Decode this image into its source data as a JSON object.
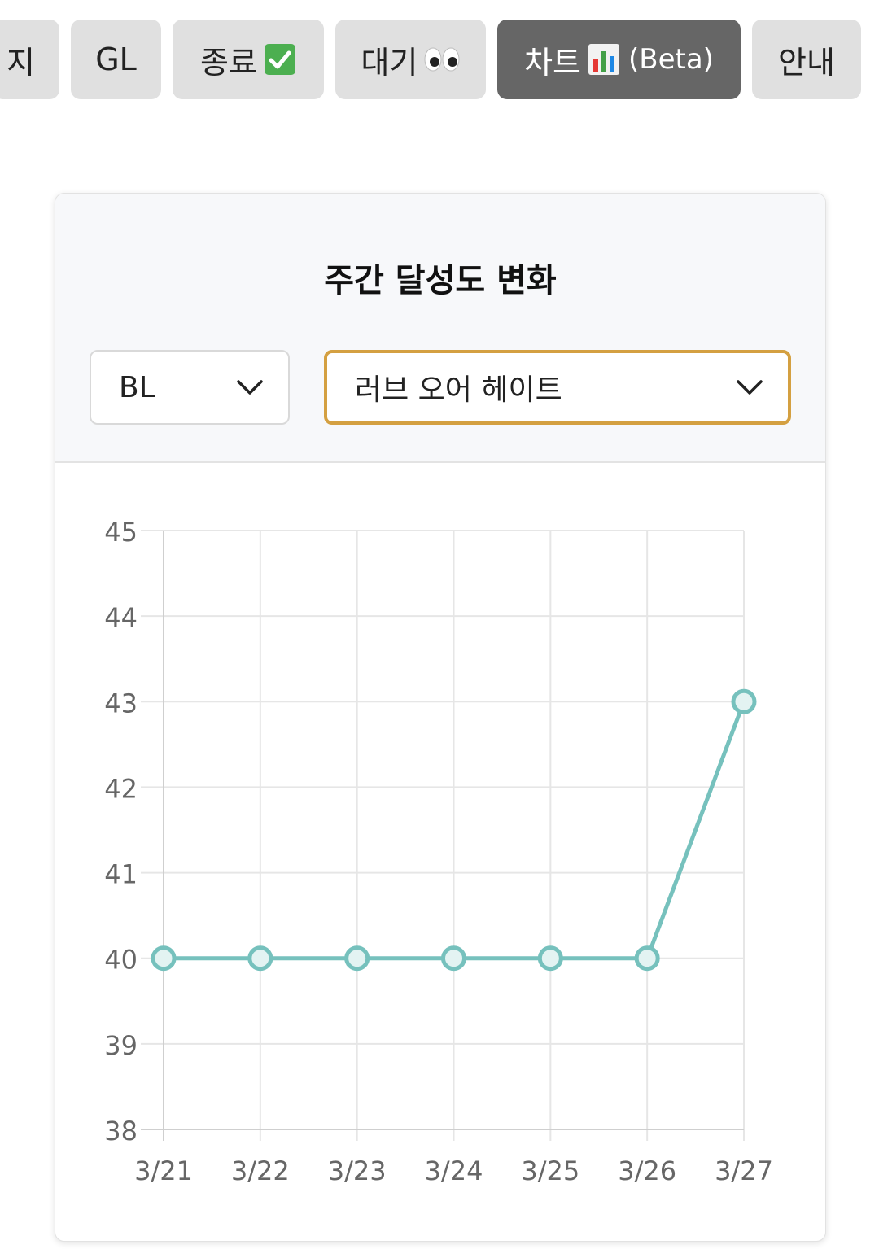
{
  "tabs": [
    {
      "label": "지",
      "emoji": ""
    },
    {
      "label": "GL",
      "emoji": ""
    },
    {
      "label": "종료",
      "emoji": "✅"
    },
    {
      "label": "대기",
      "emoji": "👀"
    },
    {
      "label": "차트",
      "emoji": "📊",
      "suffix": "(Beta)",
      "active": true
    },
    {
      "label": "안내",
      "emoji": ""
    }
  ],
  "card": {
    "title": "주간 달성도 변화",
    "category_select": {
      "value": "BL"
    },
    "title_select": {
      "value": "러브 오어 헤이트"
    }
  },
  "colors": {
    "line": "#76c1bd",
    "select_focus_border": "#d4a041",
    "active_tab": "#666666",
    "tab": "#e0e0e0"
  },
  "chart_data": {
    "type": "line",
    "categories": [
      "3/21",
      "3/22",
      "3/23",
      "3/24",
      "3/25",
      "3/26",
      "3/27"
    ],
    "series": [
      {
        "values": [
          40,
          40,
          40,
          40,
          40,
          40,
          43
        ]
      }
    ],
    "yticks": [
      38,
      39,
      40,
      41,
      42,
      43,
      44,
      45
    ],
    "ylim": [
      38,
      45
    ],
    "grid": true,
    "legend": "none"
  }
}
